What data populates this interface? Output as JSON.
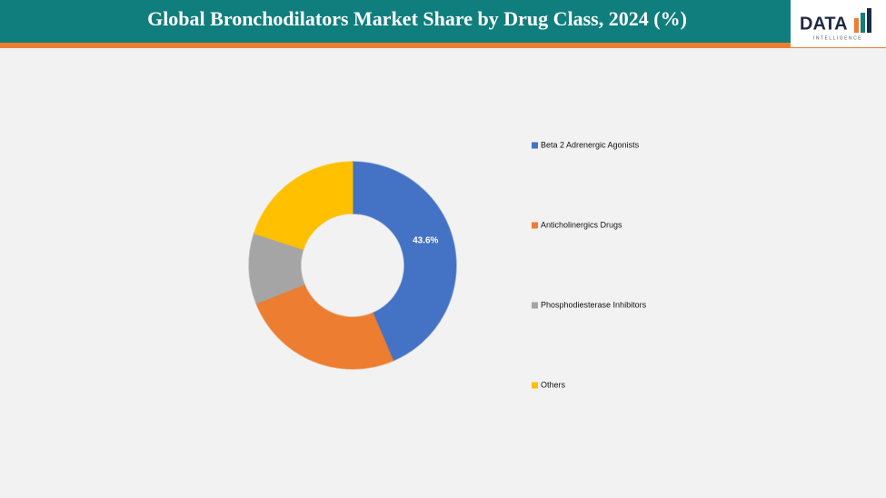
{
  "header": {
    "logo_text": "DATA",
    "logo_subtext": "INTELLIGENCE"
  },
  "chart_data": {
    "type": "donut",
    "title": "Global Bronchodilators Market Share by Drug Class, 2024 (%)",
    "categories": [
      "Beta 2 Adrenergic Agonists",
      "Anticholinergics Drugs",
      "Phosphodiesterase Inhibitors",
      "Others"
    ],
    "values": [
      43.6,
      25.4,
      11,
      20
    ],
    "value_labels": [
      "43.6%",
      null,
      null,
      null
    ],
    "colors": [
      "#4472c4",
      "#ed7d31",
      "#a5a5a5",
      "#ffc000"
    ],
    "legend": "right"
  }
}
